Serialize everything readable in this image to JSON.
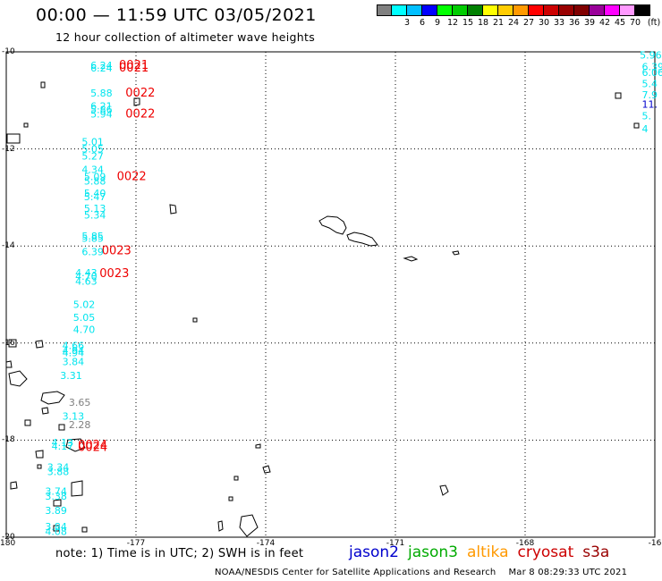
{
  "header": {
    "title": "00:00 — 11:59 UTC 03/05/2021",
    "subtitle": "12 hour collection of altimeter wave heights"
  },
  "legend": {
    "unit": "(ft)",
    "bins": [
      {
        "color": "#808080",
        "label": ""
      },
      {
        "color": "#00ffff",
        "label": "3"
      },
      {
        "color": "#00bfff",
        "label": "6"
      },
      {
        "color": "#0000ff",
        "label": "9"
      },
      {
        "color": "#00ff00",
        "label": "12"
      },
      {
        "color": "#00cc00",
        "label": "15"
      },
      {
        "color": "#008000",
        "label": "18"
      },
      {
        "color": "#ffff00",
        "label": "21"
      },
      {
        "color": "#ffcc00",
        "label": "24"
      },
      {
        "color": "#ff9900",
        "label": "27"
      },
      {
        "color": "#ff0000",
        "label": "30"
      },
      {
        "color": "#cc0000",
        "label": "33"
      },
      {
        "color": "#990000",
        "label": "36"
      },
      {
        "color": "#800000",
        "label": "39"
      },
      {
        "color": "#990099",
        "label": "42"
      },
      {
        "color": "#ff00ff",
        "label": "45"
      },
      {
        "color": "#ff99ff",
        "label": "70"
      },
      {
        "color": "#000000",
        "label": ""
      }
    ]
  },
  "footer": {
    "note": "note: 1) Time is in UTC; 2) SWH is in feet",
    "credit": "NOAA/NESDIS Center for Satellite Applications and Research",
    "generated": "Mar  8 08:29:33 UTC 2021"
  },
  "satellites": [
    {
      "name": "jason2",
      "color": "#0000cc"
    },
    {
      "name": "jason3",
      "color": "#00aa00"
    },
    {
      "name": "altika",
      "color": "#ff9900"
    },
    {
      "name": "cryosat",
      "color": "#cc0000"
    },
    {
      "name": "s3a",
      "color": "#990000"
    }
  ],
  "chart_data": {
    "type": "scatter",
    "title": "12 hour collection of altimeter wave heights",
    "xlim": [
      -180,
      -165
    ],
    "ylim": [
      -20,
      -10
    ],
    "x_ticks": [
      "-180",
      "-177",
      "-174",
      "-171",
      "-168",
      "-16"
    ],
    "y_ticks": [
      "-10",
      "-12",
      "-14",
      "-16",
      "-18",
      "-20"
    ],
    "grid": true,
    "swh_ft": [
      {
        "x": -177.8,
        "y": -10.28,
        "v": "6.24"
      },
      {
        "x": -177.8,
        "y": -10.33,
        "v": "6.24"
      },
      {
        "x": -177.8,
        "y": -10.85,
        "v": "5.88"
      },
      {
        "x": -177.8,
        "y": -11.11,
        "v": "6.21"
      },
      {
        "x": -177.8,
        "y": -11.19,
        "v": "5.86"
      },
      {
        "x": -177.8,
        "y": -11.28,
        "v": "5.94"
      },
      {
        "x": -178.0,
        "y": -11.85,
        "v": "5.01"
      },
      {
        "x": -178.0,
        "y": -12.0,
        "v": "5.05"
      },
      {
        "x": -178.0,
        "y": -12.15,
        "v": "5.27"
      },
      {
        "x": -178.0,
        "y": -12.42,
        "v": "4.34"
      },
      {
        "x": -177.95,
        "y": -12.57,
        "v": "5.09"
      },
      {
        "x": -177.95,
        "y": -12.66,
        "v": "5.88"
      },
      {
        "x": -177.95,
        "y": -12.91,
        "v": "5.40"
      },
      {
        "x": -177.95,
        "y": -12.98,
        "v": "5.47"
      },
      {
        "x": -177.95,
        "y": -13.22,
        "v": "5.13"
      },
      {
        "x": -177.95,
        "y": -13.36,
        "v": "5.34"
      },
      {
        "x": -178.0,
        "y": -13.79,
        "v": "5.85"
      },
      {
        "x": -178.0,
        "y": -13.84,
        "v": "5.85"
      },
      {
        "x": -178.0,
        "y": -14.12,
        "v": "6.39"
      },
      {
        "x": -178.15,
        "y": -14.55,
        "v": "4.43"
      },
      {
        "x": -178.15,
        "y": -14.62,
        "v": "4.70"
      },
      {
        "x": -178.15,
        "y": -14.72,
        "v": "4.63"
      },
      {
        "x": -178.2,
        "y": -15.2,
        "v": "5.02"
      },
      {
        "x": -178.2,
        "y": -15.47,
        "v": "5.05"
      },
      {
        "x": -178.2,
        "y": -15.72,
        "v": "4.70"
      },
      {
        "x": -178.45,
        "y": -16.05,
        "v": "4.66"
      },
      {
        "x": -178.45,
        "y": -16.15,
        "v": "4.94"
      },
      {
        "x": -178.45,
        "y": -16.2,
        "v": "4.94"
      },
      {
        "x": -178.45,
        "y": -16.38,
        "v": "3.84"
      },
      {
        "x": -178.5,
        "y": -16.67,
        "v": "3.31"
      },
      {
        "x": -178.45,
        "y": -17.5,
        "v": "3.13"
      },
      {
        "x": -178.7,
        "y": -18.05,
        "v": "4.13"
      },
      {
        "x": -178.7,
        "y": -18.12,
        "v": "4.17"
      },
      {
        "x": -178.8,
        "y": -18.55,
        "v": "3.34"
      },
      {
        "x": -178.8,
        "y": -18.65,
        "v": "3.88"
      },
      {
        "x": -178.85,
        "y": -19.05,
        "v": "3.74"
      },
      {
        "x": -178.85,
        "y": -19.15,
        "v": "3.38"
      },
      {
        "x": -178.85,
        "y": -19.45,
        "v": "3.89"
      },
      {
        "x": -178.85,
        "y": -19.78,
        "v": "3.84"
      },
      {
        "x": -178.85,
        "y": -19.88,
        "v": "4.08"
      }
    ],
    "swh_ft_gray": [
      {
        "x": -178.3,
        "y": -17.22,
        "v": "3.65"
      },
      {
        "x": -178.3,
        "y": -17.68,
        "v": "2.28"
      }
    ],
    "pass_times": [
      {
        "x": -177.05,
        "y": -10.28,
        "v": "0021"
      },
      {
        "x": -177.05,
        "y": -10.33,
        "v": "0021"
      },
      {
        "x": -176.9,
        "y": -10.85,
        "v": "0022"
      },
      {
        "x": -176.9,
        "y": -11.28,
        "v": "0022"
      },
      {
        "x": -177.1,
        "y": -12.57,
        "v": "0022"
      },
      {
        "x": -177.45,
        "y": -14.1,
        "v": "0023"
      },
      {
        "x": -177.5,
        "y": -14.57,
        "v": "0023"
      },
      {
        "x": -178.0,
        "y": -18.1,
        "v": "0024"
      },
      {
        "x": -178.0,
        "y": -18.15,
        "v": "0024"
      }
    ],
    "swh_ft_right_edge": [
      {
        "x": -165.35,
        "y": -10.06,
        "v": "5.96"
      },
      {
        "x": -165.3,
        "y": -10.3,
        "v": "6.39"
      },
      {
        "x": -165.3,
        "y": -10.42,
        "v": "6.06"
      },
      {
        "x": -165.3,
        "y": -10.65,
        "v": "5.4"
      },
      {
        "x": -165.3,
        "y": -10.88,
        "v": "7.9"
      },
      {
        "x": -165.3,
        "y": -11.08,
        "v": "11."
      },
      {
        "x": -165.3,
        "y": -11.32,
        "v": "5."
      },
      {
        "x": -165.3,
        "y": -11.58,
        "v": "4"
      }
    ]
  }
}
